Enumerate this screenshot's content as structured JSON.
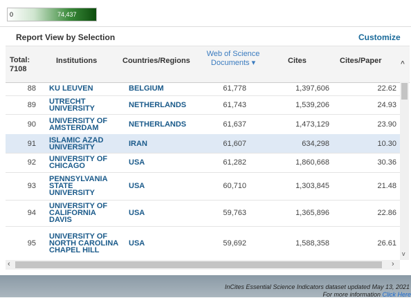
{
  "legend": {
    "min": "0",
    "max": "74,437"
  },
  "panel": {
    "title": "Report View by Selection",
    "action": "Customize"
  },
  "table": {
    "total_label": "Total:",
    "total_value": "7108",
    "headers": [
      "Institutions",
      "Countries/Regions",
      "Web of Science Documents",
      "Cites",
      "Cites/Paper"
    ],
    "rows": [
      [
        "88",
        "KU LEUVEN",
        "BELGIUM",
        "61,778",
        "1,397,606",
        "22.62"
      ],
      [
        "89",
        "UTRECHT UNIVERSITY",
        "NETHERLANDS",
        "61,743",
        "1,539,206",
        "24.93"
      ],
      [
        "90",
        "UNIVERSITY OF AMSTERDAM",
        "NETHERLANDS",
        "61,637",
        "1,473,129",
        "23.90"
      ],
      [
        "91",
        "ISLAMIC AZAD UNIVERSITY",
        "IRAN",
        "61,607",
        "634,298",
        "10.30"
      ],
      [
        "92",
        "UNIVERSITY OF CHICAGO",
        "USA",
        "61,282",
        "1,860,668",
        "30.36"
      ],
      [
        "93",
        "PENNSYLVANIA STATE UNIVERSITY",
        "USA",
        "60,710",
        "1,303,845",
        "21.48"
      ],
      [
        "94",
        "UNIVERSITY OF CALIFORNIA DAVIS",
        "USA",
        "59,763",
        "1,365,896",
        "22.86"
      ],
      [
        "95",
        "UNIVERSITY OF NORTH CAROLINA CHAPEL HILL",
        "USA",
        "59,692",
        "1,588,358",
        "26.61"
      ]
    ]
  },
  "footer": {
    "text": "InCites Essential Science Indicators dataset updated May 13, 2021",
    "more": "For more information",
    "link": "Click Here"
  }
}
